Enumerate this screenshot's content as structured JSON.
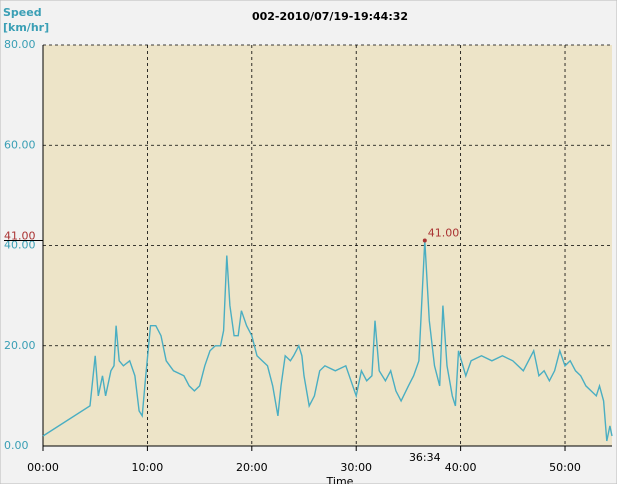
{
  "chart_data": {
    "type": "line",
    "title": "002-2010/07/19-19:44:32",
    "y_label": [
      "Speed",
      "[km/hr]"
    ],
    "x_label": "Time",
    "color": "#4aaec2",
    "grid": true,
    "x": [
      0,
      4.5,
      5,
      5.3,
      5.7,
      6,
      6.5,
      6.8,
      7,
      7.3,
      7.7,
      8.3,
      8.8,
      9.2,
      9.5,
      9.8,
      10.3,
      10.8,
      11.3,
      11.8,
      12.5,
      13.5,
      14,
      14.5,
      15,
      15.5,
      16,
      16.5,
      17,
      17.3,
      17.6,
      17.9,
      18.3,
      18.7,
      19,
      19.5,
      20,
      20.5,
      21,
      21.5,
      22,
      22.5,
      22.8,
      23.2,
      23.7,
      24,
      24.5,
      24.8,
      25,
      25.5,
      26,
      26.5,
      27,
      28,
      29,
      29.5,
      30,
      30.5,
      31,
      31.5,
      31.8,
      32.2,
      32.8,
      33.3,
      33.8,
      34.3,
      35,
      35.5,
      36,
      36.57,
      37,
      37.5,
      38,
      38.3,
      38.7,
      39.2,
      39.5,
      39.8,
      40.5,
      41,
      42,
      43,
      44,
      45,
      46,
      46.5,
      47,
      47.5,
      48,
      48.5,
      49,
      49.5,
      50,
      50.5,
      51,
      51.5,
      52,
      52.5,
      53,
      53.3,
      53.7,
      54,
      54.3,
      54.5
    ],
    "values": [
      2,
      8,
      18,
      10,
      14,
      10,
      15,
      16,
      24,
      17,
      16,
      17,
      14,
      7,
      6,
      13,
      24,
      24,
      22,
      17,
      15,
      14,
      12,
      11,
      12,
      16,
      19,
      20,
      20,
      23,
      38,
      28,
      22,
      22,
      27,
      24,
      22,
      18,
      17,
      16,
      12,
      6,
      12,
      18,
      17,
      18,
      20,
      18,
      14,
      8,
      10,
      15,
      16,
      15,
      16,
      13,
      10,
      15,
      13,
      14,
      25,
      15,
      13,
      15,
      11,
      9,
      12,
      14,
      17,
      41,
      25,
      16,
      12,
      28,
      16,
      10,
      8,
      19,
      14,
      17,
      18,
      17,
      18,
      17,
      15,
      17,
      19,
      14,
      15,
      13,
      15,
      19,
      16,
      17,
      15,
      14,
      12,
      11,
      10,
      12,
      9,
      1,
      4,
      2
    ],
    "xlim": [
      0,
      54.5
    ],
    "ylim": [
      0,
      80
    ],
    "xticks": [
      {
        "value": 0,
        "label": "00:00"
      },
      {
        "value": 10,
        "label": "10:00"
      },
      {
        "value": 20,
        "label": "20:00"
      },
      {
        "value": 30,
        "label": "30:00"
      },
      {
        "value": 40,
        "label": "40:00"
      },
      {
        "value": 50,
        "label": "50:00"
      }
    ],
    "yticks": [
      {
        "value": 0,
        "label": "0.00"
      },
      {
        "value": 20,
        "label": "20.00"
      },
      {
        "value": 40,
        "label": "40.00"
      },
      {
        "value": 60,
        "label": "60.00"
      },
      {
        "value": 80,
        "label": "80.00"
      }
    ],
    "annotation": {
      "value": 41,
      "label": "41.00",
      "x": 36.57,
      "x_label": "36:34"
    }
  }
}
